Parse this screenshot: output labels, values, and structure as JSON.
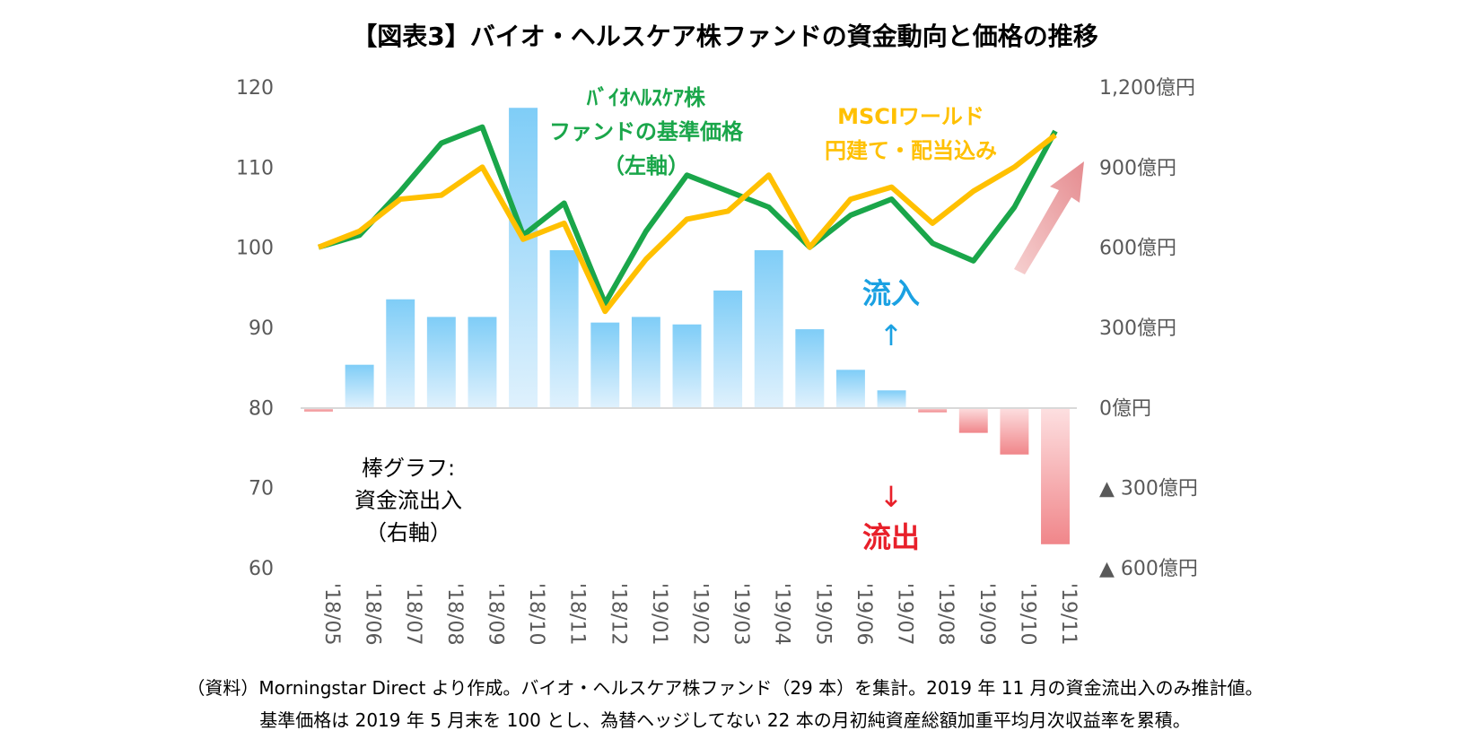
{
  "chart_data": {
    "type": "bar+line",
    "title": "【図表3】バイオ・ヘルスケア株ファンドの資金動向と価格の推移",
    "categories": [
      "'18/05",
      "'18/06",
      "'18/07",
      "'18/08",
      "'18/09",
      "'18/10",
      "'18/11",
      "'18/12",
      "'19/01",
      "'19/02",
      "'19/03",
      "'19/04",
      "'19/05",
      "'19/06",
      "'19/07",
      "'19/08",
      "'19/09",
      "'19/10",
      "'19/11"
    ],
    "left_axis": {
      "ylim": [
        60,
        120
      ],
      "ticks": [
        "60",
        "70",
        "80",
        "90",
        "100",
        "110",
        "120"
      ]
    },
    "right_axis": {
      "ylim": [
        -600,
        1200
      ],
      "ticks": [
        "▲ 600億円",
        "▲ 300億円",
        "0億円",
        "300億円",
        "600億円",
        "900億円",
        "1,200億円"
      ]
    },
    "bars": {
      "label_lines": [
        "棒グラフ:",
        "資金流出入",
        "（右軸）"
      ],
      "unit": "億円",
      "values": [
        -15,
        160,
        405,
        339,
        339,
        1122,
        589,
        318,
        339,
        311,
        438,
        589,
        293,
        141,
        64,
        -18,
        -95,
        -176,
        -512
      ],
      "positive_color": "#7fcdf7",
      "negative_color": "#f0868a"
    },
    "series": [
      {
        "label_lines": [
          "ﾊﾞｲｵﾍﾙｽｹｱ株",
          "ファンドの基準価格",
          "（左軸）"
        ],
        "color": "#1aa64a",
        "values": [
          100,
          101.5,
          107,
          113,
          115,
          101.5,
          105.5,
          93,
          102,
          109,
          107,
          105,
          100,
          104,
          106,
          100.5,
          98.3,
          105,
          114.5
        ]
      },
      {
        "label_lines": [
          "MSCIワールド",
          "円建て・配当込み"
        ],
        "color": "#ffc000",
        "values": [
          100,
          102,
          106,
          106.5,
          110,
          101,
          103,
          92,
          98.5,
          103.5,
          104.5,
          109,
          100,
          106,
          107.5,
          103,
          107,
          110,
          114
        ]
      }
    ],
    "annotations": {
      "inflow": "流入",
      "inflow_arrow": "↑",
      "outflow": "流出",
      "outflow_arrow": "↓",
      "inflow_color": "#1ba1e2",
      "outflow_color": "#e8202a"
    }
  },
  "footnote": [
    "（資料）Morningstar Direct より作成。バイオ・ヘルスケア株ファンド（29 本）を集計。2019 年 11 月の資金流出入のみ推計値。",
    "基準価格は 2019 年 5 月末を 100 とし、為替ヘッジしてない 22 本の月初純資産総額加重平均月次収益率を累積。"
  ]
}
